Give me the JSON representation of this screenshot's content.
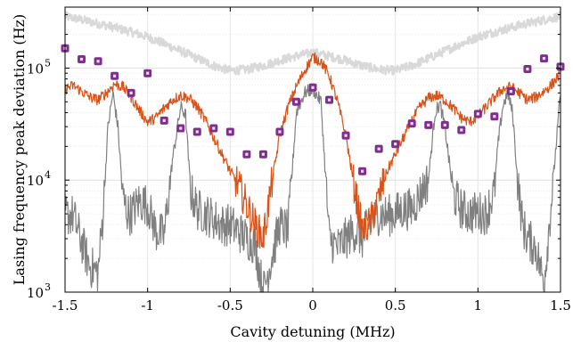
{
  "chart_data": {
    "type": "line",
    "xlabel": "Cavity detuning (MHz)",
    "ylabel": "Lasing frequency peak deviation (Hz)",
    "xlim": [
      -1.5,
      1.5
    ],
    "ylim": [
      1000,
      350000
    ],
    "y_scale": "log",
    "grid": "minor-dotted",
    "x_ticks": [
      -1.5,
      -1,
      -0.5,
      0,
      0.5,
      1,
      1.5
    ],
    "x_tick_labels": [
      "-1.5",
      "-1",
      "-0.5",
      "0",
      "0.5",
      "1",
      "1.5"
    ],
    "y_ticks": [
      1000,
      10000,
      100000
    ],
    "y_tick_labels": [
      {
        "base": "10",
        "exp": "3"
      },
      {
        "base": "10",
        "exp": "4"
      },
      {
        "base": "10",
        "exp": "5"
      }
    ],
    "series": [
      {
        "color": "#d9d9d9",
        "style": "noisy-line",
        "x": [
          -1.5,
          -1.4,
          -1.3,
          -1.2,
          -1.1,
          -1.0,
          -0.9,
          -0.8,
          -0.7,
          -0.6,
          -0.5,
          -0.4,
          -0.3,
          -0.2,
          -0.1,
          0.0,
          0.1,
          0.2,
          0.3,
          0.4,
          0.5,
          0.6,
          0.7,
          0.8,
          0.9,
          1.0,
          1.1,
          1.2,
          1.3,
          1.4,
          1.5
        ],
        "y": [
          290000,
          270000,
          250000,
          230000,
          210000,
          190000,
          165000,
          142000,
          122000,
          105000,
          95000,
          97000,
          105000,
          117000,
          128000,
          138000,
          128000,
          117000,
          105000,
          97000,
          95000,
          105000,
          122000,
          142000,
          165000,
          190000,
          210000,
          230000,
          250000,
          270000,
          290000
        ]
      },
      {
        "color": "#808080",
        "style": "noisy-line",
        "x": [
          -1.5,
          -1.45,
          -1.4,
          -1.35,
          -1.3,
          -1.27,
          -1.24,
          -1.21,
          -1.18,
          -1.15,
          -1.12,
          -1.1,
          -1.05,
          -1.0,
          -0.95,
          -0.9,
          -0.85,
          -0.8,
          -0.77,
          -0.74,
          -0.7,
          -0.65,
          -0.6,
          -0.55,
          -0.5,
          -0.45,
          -0.4,
          -0.35,
          -0.3,
          -0.25,
          -0.2,
          -0.15,
          -0.1,
          -0.05,
          0.0,
          0.05,
          0.1,
          0.15,
          0.2,
          0.25,
          0.3,
          0.35,
          0.4,
          0.45,
          0.5,
          0.55,
          0.6,
          0.65,
          0.7,
          0.74,
          0.77,
          0.8,
          0.85,
          0.9,
          0.95,
          1.0,
          1.05,
          1.1,
          1.12,
          1.15,
          1.18,
          1.21,
          1.24,
          1.27,
          1.3,
          1.35,
          1.4,
          1.45,
          1.5
        ],
        "y": [
          5000,
          4800,
          2800,
          1700,
          1500,
          5000,
          30000,
          60000,
          30000,
          7000,
          5000,
          5000,
          6500,
          6000,
          3500,
          3200,
          15000,
          45000,
          38000,
          8000,
          5500,
          5000,
          4500,
          4000,
          4000,
          3500,
          3000,
          2700,
          1000,
          2000,
          4000,
          3500,
          40000,
          60000,
          65000,
          50000,
          3000,
          2500,
          3000,
          3500,
          3000,
          4200,
          5000,
          4800,
          5000,
          5500,
          5500,
          7500,
          10000,
          40000,
          48000,
          30000,
          7500,
          5500,
          5000,
          5200,
          5000,
          8000,
          20000,
          45000,
          60000,
          40000,
          10000,
          4000,
          3000,
          2500,
          1200,
          8000,
          60000
        ]
      },
      {
        "color": "#d95319",
        "style": "noisy-line",
        "x": [
          -1.5,
          -1.45,
          -1.4,
          -1.35,
          -1.3,
          -1.25,
          -1.2,
          -1.15,
          -1.1,
          -1.05,
          -1.0,
          -0.95,
          -0.9,
          -0.85,
          -0.8,
          -0.75,
          -0.7,
          -0.65,
          -0.6,
          -0.55,
          -0.5,
          -0.45,
          -0.4,
          -0.35,
          -0.3,
          -0.25,
          -0.2,
          -0.15,
          -0.1,
          -0.05,
          0.0,
          0.05,
          0.1,
          0.15,
          0.2,
          0.25,
          0.3,
          0.35,
          0.4,
          0.45,
          0.5,
          0.55,
          0.6,
          0.65,
          0.7,
          0.75,
          0.8,
          0.85,
          0.9,
          0.95,
          1.0,
          1.05,
          1.1,
          1.15,
          1.2,
          1.25,
          1.3,
          1.35,
          1.4,
          1.45,
          1.5
        ],
        "y": [
          65000,
          70000,
          62000,
          55000,
          52000,
          60000,
          72000,
          68000,
          55000,
          42000,
          33000,
          36000,
          44000,
          52000,
          57000,
          54000,
          45000,
          34000,
          24000,
          17000,
          12000,
          9000,
          6000,
          4000,
          3000,
          9000,
          25000,
          45000,
          68000,
          95000,
          125000,
          115000,
          85000,
          50000,
          25000,
          9000,
          3500,
          4200,
          7000,
          12000,
          17000,
          24000,
          34000,
          45000,
          54000,
          57000,
          52000,
          44000,
          36000,
          33000,
          37000,
          45000,
          55000,
          65000,
          68000,
          60000,
          52000,
          55000,
          62000,
          72000,
          90000
        ]
      },
      {
        "color": "#7e2f8e",
        "style": "markers",
        "x": [
          -1.5,
          -1.4,
          -1.3,
          -1.2,
          -1.1,
          -1.0,
          -0.9,
          -0.8,
          -0.7,
          -0.6,
          -0.5,
          -0.4,
          -0.3,
          -0.2,
          -0.1,
          0.0,
          0.1,
          0.2,
          0.3,
          0.4,
          0.5,
          0.6,
          0.7,
          0.8,
          0.9,
          1.0,
          1.1,
          1.2,
          1.3,
          1.4,
          1.5
        ],
        "y": [
          150000,
          120000,
          115000,
          85000,
          60000,
          90000,
          34000,
          29000,
          27000,
          29000,
          27000,
          17000,
          17000,
          27000,
          50000,
          67000,
          52000,
          25000,
          12000,
          19000,
          21000,
          32000,
          31000,
          31000,
          28000,
          39000,
          37000,
          62000,
          98000,
          122000,
          103000
        ]
      }
    ]
  }
}
